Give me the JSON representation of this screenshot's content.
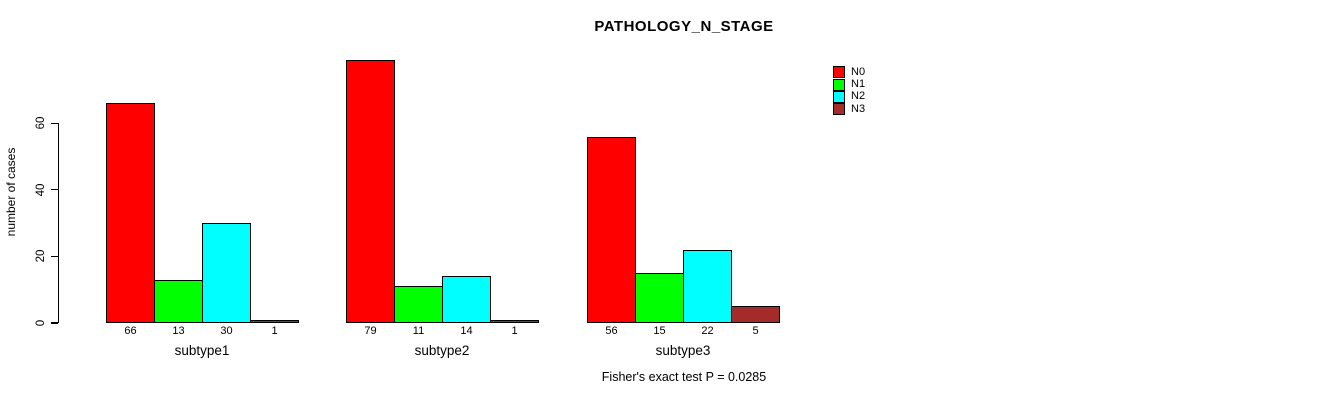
{
  "chart_data": {
    "type": "bar",
    "title": "PATHOLOGY_N_STAGE",
    "xlabel": "",
    "ylabel": "number of cases",
    "ylim": [
      0,
      80
    ],
    "yticks": [
      0,
      20,
      40,
      60
    ],
    "grid": false,
    "legend_position": "top-right",
    "categories": [
      "subtype1",
      "subtype2",
      "subtype3"
    ],
    "series": [
      {
        "name": "N0",
        "color": "#ff0000",
        "values": [
          66,
          79,
          56
        ]
      },
      {
        "name": "N1",
        "color": "#00ff00",
        "values": [
          13,
          11,
          15
        ]
      },
      {
        "name": "N2",
        "color": "#00ffff",
        "values": [
          30,
          14,
          22
        ]
      },
      {
        "name": "N3",
        "color": "#a52a2a",
        "values": [
          1,
          1,
          5
        ]
      }
    ],
    "bar_value_labels": {
      "subtype1": [
        66,
        13,
        30,
        1
      ],
      "subtype2": [
        79,
        11,
        14,
        1
      ],
      "subtype3": [
        56,
        15,
        22,
        5
      ]
    },
    "annotation": "Fisher's exact test P = 0.0285"
  }
}
